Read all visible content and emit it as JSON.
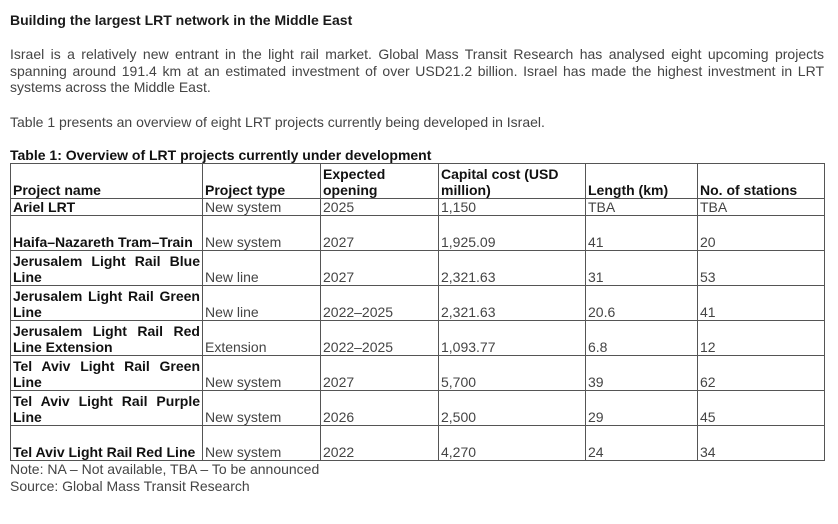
{
  "title": "Building the largest LRT network in the Middle East",
  "paragraphs": [
    "Israel is a relatively new entrant in the light rail market. Global Mass Transit Research has analysed eight upcoming projects spanning around 191.4 km at an estimated investment of over USD21.2 billion. Israel has made the highest investment in LRT systems across the Middle East.",
    "Table 1 presents an overview of eight LRT projects currently being developed in Israel."
  ],
  "table": {
    "caption": "Table 1: Overview of LRT projects currently under development",
    "headers": [
      "Project name",
      "Project type",
      "Expected opening",
      "Capital cost (USD million)",
      "Length (km)",
      "No. of stations"
    ],
    "rows": [
      [
        "Ariel LRT",
        "New system",
        "2025",
        "1,150",
        "TBA",
        "TBA"
      ],
      [
        "Haifa–Nazareth Tram–Train",
        "New system",
        "2027",
        "1,925.09",
        "41",
        "20"
      ],
      [
        "Jerusalem Light Rail Blue Line",
        "New line",
        "2027",
        "2,321.63",
        "31",
        "53"
      ],
      [
        "Jerusalem Light Rail Green Line",
        "New line",
        "2022–2025",
        "2,321.63",
        "20.6",
        "41"
      ],
      [
        "Jerusalem Light Rail Red Line Extension",
        "Extension",
        "2022–2025",
        "1,093.77",
        "6.8",
        "12"
      ],
      [
        "Tel Aviv Light Rail Green Line",
        "New system",
        "2027",
        "5,700",
        "39",
        "62"
      ],
      [
        "Tel Aviv Light Rail Purple Line",
        "New system",
        "2026",
        "2,500",
        "29",
        "45"
      ],
      [
        "Tel Aviv Light Rail Red Line",
        "New system",
        "2022",
        "4,270",
        "24",
        "34"
      ]
    ]
  },
  "notes": [
    "Note: NA – Not available, TBA – To be announced",
    "Source: Global Mass Transit Research"
  ]
}
